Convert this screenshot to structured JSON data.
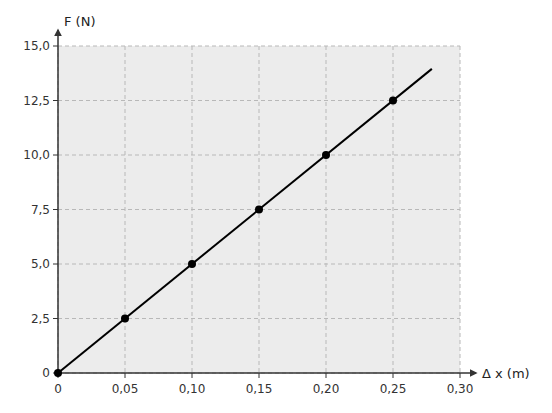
{
  "chart_data": {
    "type": "scatter",
    "xlabel": "Δ x (m)",
    "ylabel": "F (N)",
    "series": [
      {
        "type": "scatter",
        "x": [
          0,
          0.05,
          0.1,
          0.15,
          0.2,
          0.25
        ],
        "values": [
          0,
          2.5,
          5.0,
          7.5,
          10.0,
          12.5
        ],
        "color": "#000000",
        "marker": "circle"
      },
      {
        "type": "line",
        "x": [
          0,
          0.279
        ],
        "values": [
          0,
          13.95
        ],
        "color": "#000000",
        "line_style": "solid"
      }
    ],
    "xlim": [
      0,
      0.3
    ],
    "ylim": [
      0,
      15.0
    ],
    "xticks": [
      0,
      {
        "value": 0.05,
        "label": "0,05"
      },
      {
        "value": 0.1,
        "label": "0,10"
      },
      {
        "value": 0.15,
        "label": "0,15"
      },
      {
        "value": 0.2,
        "label": "0,20"
      },
      {
        "value": 0.25,
        "label": "0,25"
      },
      {
        "value": 0.3,
        "label": "0,30"
      }
    ],
    "yticks": [
      0,
      {
        "value": 2.5,
        "label": "2,5"
      },
      {
        "value": 5.0,
        "label": "5,0"
      },
      {
        "value": 7.5,
        "label": "7,5"
      },
      {
        "value": 10.0,
        "label": "10,0"
      },
      {
        "value": 12.5,
        "label": "12,5"
      },
      {
        "value": 15.0,
        "label": "15,0"
      }
    ],
    "grid": true
  }
}
